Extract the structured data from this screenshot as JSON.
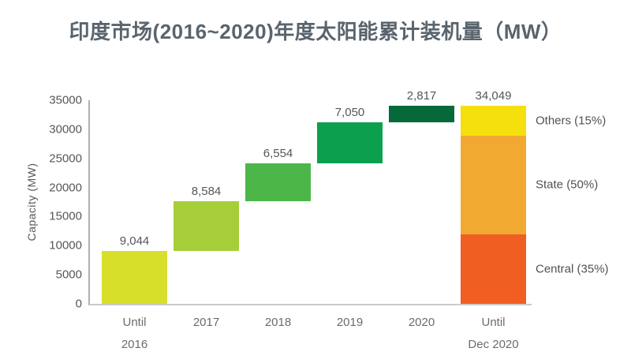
{
  "title": "印度市场(2016~2020)年度太阳能累计装机量（MW）",
  "chart_data": {
    "type": "waterfall",
    "title": "印度市场(2016~2020)年度太阳能累计装机量（MW）",
    "xlabel": "",
    "ylabel": "Capacity (MW)",
    "ylim": [
      0,
      35000
    ],
    "ytick_step": 5000,
    "yticks": [
      0,
      5000,
      10000,
      15000,
      20000,
      25000,
      30000,
      35000
    ],
    "grid": false,
    "legend_position": "right-of-total-bar",
    "categories": [
      "Until 2016",
      "2017",
      "2018",
      "2019",
      "2020",
      "Until Dec 2020"
    ],
    "bars": [
      {
        "label": "Until 2016",
        "label_lines": [
          "Until",
          "2016"
        ],
        "value": 9044,
        "display": "9,044",
        "start": 0,
        "end": 9044,
        "color": "#d7df2a"
      },
      {
        "label": "2017",
        "label_lines": [
          "2017"
        ],
        "value": 8584,
        "display": "8,584",
        "start": 9044,
        "end": 17628,
        "color": "#a6ce39"
      },
      {
        "label": "2018",
        "label_lines": [
          "2018"
        ],
        "value": 6554,
        "display": "6,554",
        "start": 17628,
        "end": 24182,
        "color": "#4cb748"
      },
      {
        "label": "2019",
        "label_lines": [
          "2019"
        ],
        "value": 7050,
        "display": "7,050",
        "start": 24182,
        "end": 31232,
        "color": "#0ca04e"
      },
      {
        "label": "2020",
        "label_lines": [
          "2020"
        ],
        "value": 2817,
        "display": "2,817",
        "start": 31232,
        "end": 34049,
        "color": "#05693a"
      }
    ],
    "total_bar": {
      "label": "Until Dec 2020",
      "label_lines": [
        "Until",
        "Dec 2020"
      ],
      "total": 34049,
      "display": "34,049",
      "segments_bottom_up": [
        {
          "name": "Central",
          "percent": 35,
          "legend": "Central (35%)",
          "color": "#f15e22"
        },
        {
          "name": "State",
          "percent": 50,
          "legend": "State (50%)",
          "color": "#f2a932"
        },
        {
          "name": "Others",
          "percent": 15,
          "legend": "Others (15%)",
          "color": "#f5e00e"
        }
      ]
    }
  },
  "colors": {
    "title_text": "#59646e",
    "value_text": "#54565a",
    "tick_text": "#55575b",
    "xlabel_text": "#686d71",
    "legend_text": "#4e5256",
    "y_axis_line": "#aeb0b2",
    "x_axis_line": "#c9cbcd",
    "background": "#ffffff"
  }
}
